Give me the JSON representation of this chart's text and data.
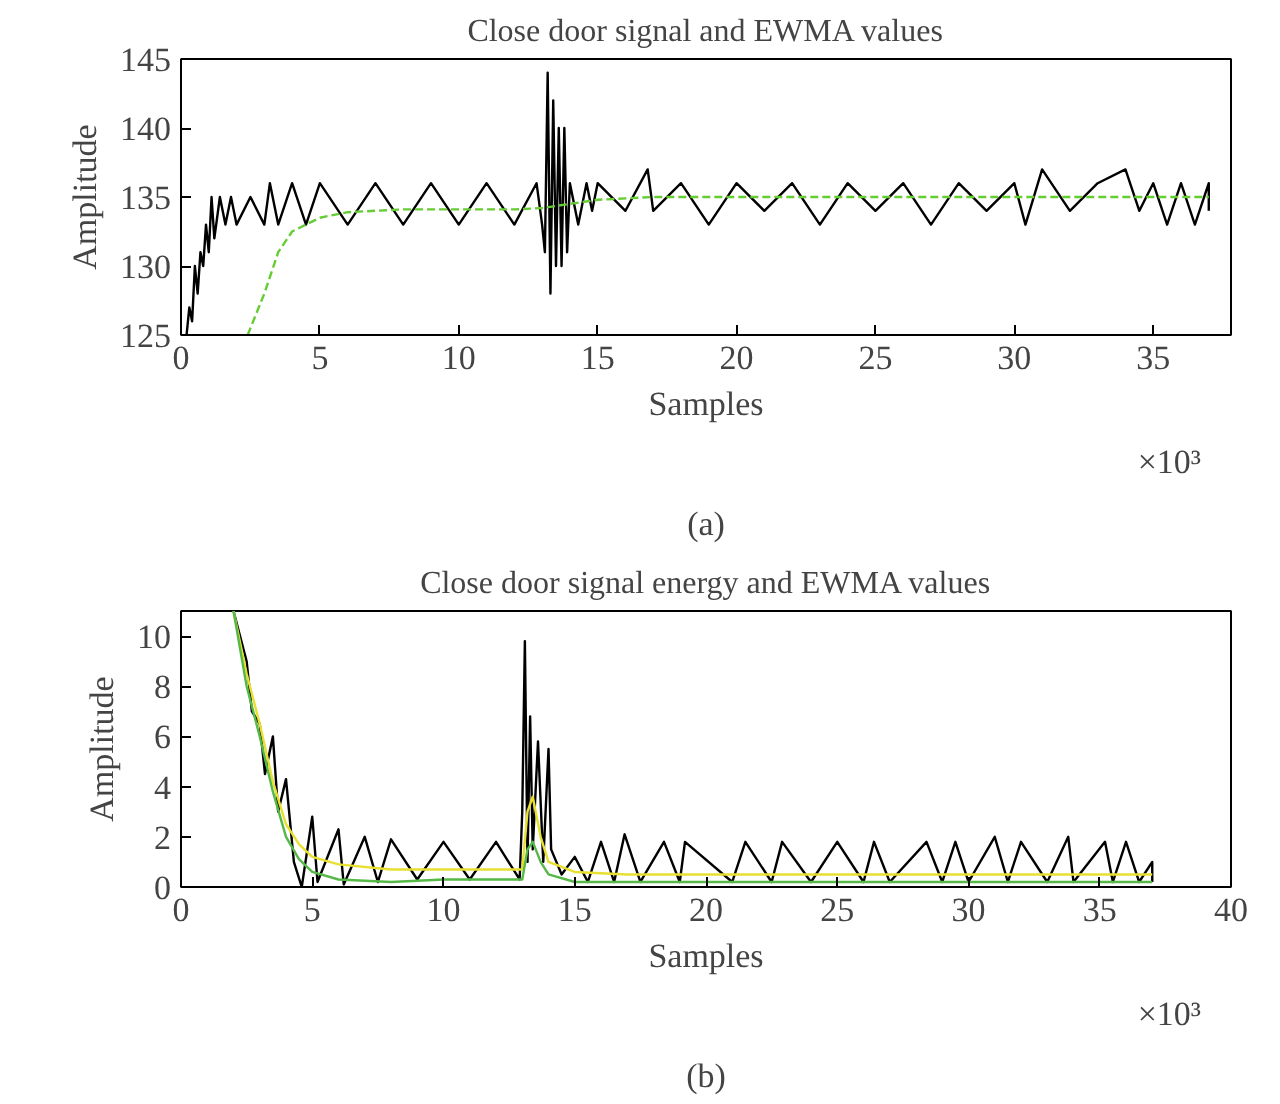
{
  "chart_data": [
    {
      "type": "line",
      "title": "Close door signal and EWMA values",
      "xlabel": "Samples",
      "ylabel": "Amplitude",
      "xlim": [
        0,
        37.8
      ],
      "ylim": [
        125,
        145
      ],
      "xticks": [
        0,
        5,
        10,
        15,
        20,
        25,
        30,
        35
      ],
      "yticks": [
        125,
        130,
        135,
        140,
        145
      ],
      "grid": false,
      "annotations": [
        "×10³",
        "(a)"
      ],
      "series": [
        {
          "color": "#000000",
          "line_style": "solid",
          "x": [
            0.2,
            0.3,
            0.4,
            0.5,
            0.6,
            0.7,
            0.8,
            0.9,
            1.0,
            1.1,
            1.2,
            1.4,
            1.6,
            1.8,
            2.0,
            2.5,
            3.0,
            3.2,
            3.5,
            4,
            4.5,
            5,
            6,
            7,
            8,
            9,
            10,
            11,
            12,
            12.8,
            13.0,
            13.1,
            13.2,
            13.3,
            13.4,
            13.5,
            13.6,
            13.7,
            13.8,
            13.9,
            14.0,
            14.3,
            14.6,
            14.8,
            15,
            16,
            16.8,
            17,
            18,
            19,
            20,
            21,
            22,
            23,
            24,
            25,
            26,
            27,
            28,
            29,
            30,
            30.4,
            31,
            32,
            33,
            34,
            34.5,
            35,
            35.5,
            36,
            36.5,
            37,
            37.0
          ],
          "values": [
            125,
            127,
            126,
            130,
            128,
            131,
            130,
            133,
            131,
            135,
            132,
            135,
            133,
            135,
            133,
            135,
            133,
            136,
            133,
            136,
            133,
            136,
            133,
            136,
            133,
            136,
            133,
            136,
            133,
            136,
            133,
            131,
            144,
            128,
            142,
            130,
            140,
            130,
            140,
            131,
            136,
            133,
            136,
            134,
            136,
            134,
            137,
            134,
            136,
            133,
            136,
            134,
            136,
            133,
            136,
            134,
            136,
            133,
            136,
            134,
            136,
            133,
            137,
            134,
            136,
            137,
            134,
            136,
            133,
            136,
            133,
            136,
            134
          ]
        },
        {
          "color": "#66cc33",
          "line_style": "dashed",
          "x": [
            2.4,
            3,
            3.5,
            4,
            5,
            6,
            8,
            12,
            13,
            14,
            15,
            17,
            37
          ],
          "values": [
            125,
            128,
            131,
            132.5,
            133.5,
            133.9,
            134.1,
            134.1,
            134.2,
            134.5,
            134.8,
            135,
            135
          ]
        }
      ]
    },
    {
      "type": "line",
      "title": "Close door signal energy and EWMA values",
      "xlabel": "Samples",
      "ylabel": "Amplitude",
      "xlim": [
        0,
        40
      ],
      "ylim": [
        0,
        11
      ],
      "xticks": [
        0,
        5,
        10,
        15,
        20,
        25,
        30,
        35,
        40
      ],
      "yticks": [
        0,
        2,
        4,
        6,
        8,
        10
      ],
      "grid": false,
      "annotations": [
        "×10³",
        "(b)"
      ],
      "series": [
        {
          "color": "#000000",
          "line_style": "solid",
          "x": [
            2.0,
            2.5,
            2.7,
            3.0,
            3.2,
            3.5,
            3.7,
            4.0,
            4.3,
            4.6,
            5,
            5.2,
            6,
            6.2,
            7,
            7.5,
            8,
            9,
            10,
            11,
            12,
            12.9,
            13.0,
            13.1,
            13.2,
            13.3,
            13.4,
            13.6,
            13.8,
            14,
            14.1,
            14.5,
            15,
            15.5,
            16,
            16.5,
            16.9,
            17.5,
            18.4,
            19,
            19.2,
            21,
            21.5,
            22.5,
            22.9,
            24,
            25,
            26,
            26.4,
            27,
            28.4,
            29,
            29.5,
            30,
            31,
            31.5,
            32,
            33,
            33.8,
            34,
            35.2,
            35.5,
            36,
            36.5,
            37,
            37.0
          ],
          "values": [
            11,
            9,
            7,
            6.5,
            4.5,
            6,
            3,
            4.3,
            1,
            0,
            2.8,
            0.2,
            2.3,
            0.1,
            2.0,
            0.2,
            1.9,
            0.3,
            1.8,
            0.3,
            1.8,
            0.3,
            3,
            9.8,
            1,
            6.8,
            1.5,
            5.8,
            1,
            5.5,
            1.5,
            0.5,
            1.2,
            0.2,
            1.8,
            0.2,
            2.1,
            0.2,
            1.8,
            0.2,
            1.8,
            0.2,
            1.8,
            0.2,
            1.8,
            0.2,
            1.8,
            0.2,
            1.8,
            0.2,
            1.8,
            0.2,
            1.8,
            0.2,
            2.0,
            0.2,
            1.8,
            0.2,
            2.0,
            0.2,
            1.8,
            0.2,
            1.8,
            0.2,
            1.0,
            0.2
          ]
        },
        {
          "color": "#e8e030",
          "line_style": "solid",
          "x": [
            2,
            2.5,
            3,
            3.5,
            4,
            4.5,
            5,
            6,
            8,
            10,
            12,
            13,
            13.2,
            13.4,
            13.7,
            14,
            15,
            17,
            20,
            25,
            30,
            35,
            37
          ],
          "values": [
            11,
            8.5,
            6.5,
            4.2,
            2.5,
            1.7,
            1.2,
            0.9,
            0.7,
            0.7,
            0.7,
            0.7,
            3.0,
            3.6,
            2.0,
            1.0,
            0.6,
            0.5,
            0.5,
            0.5,
            0.5,
            0.5,
            0.5
          ]
        },
        {
          "color": "#55b847",
          "line_style": "solid",
          "x": [
            2,
            2.5,
            3,
            3.5,
            4,
            4.5,
            5,
            6,
            8,
            10,
            12,
            13,
            13.2,
            13.4,
            13.7,
            14,
            15,
            17,
            20,
            25,
            30,
            35,
            37
          ],
          "values": [
            11,
            8,
            6,
            3.8,
            2,
            1.1,
            0.6,
            0.3,
            0.2,
            0.3,
            0.3,
            0.3,
            1.5,
            1.8,
            1.0,
            0.5,
            0.2,
            0.2,
            0.2,
            0.2,
            0.2,
            0.2,
            0.2
          ]
        }
      ]
    }
  ]
}
